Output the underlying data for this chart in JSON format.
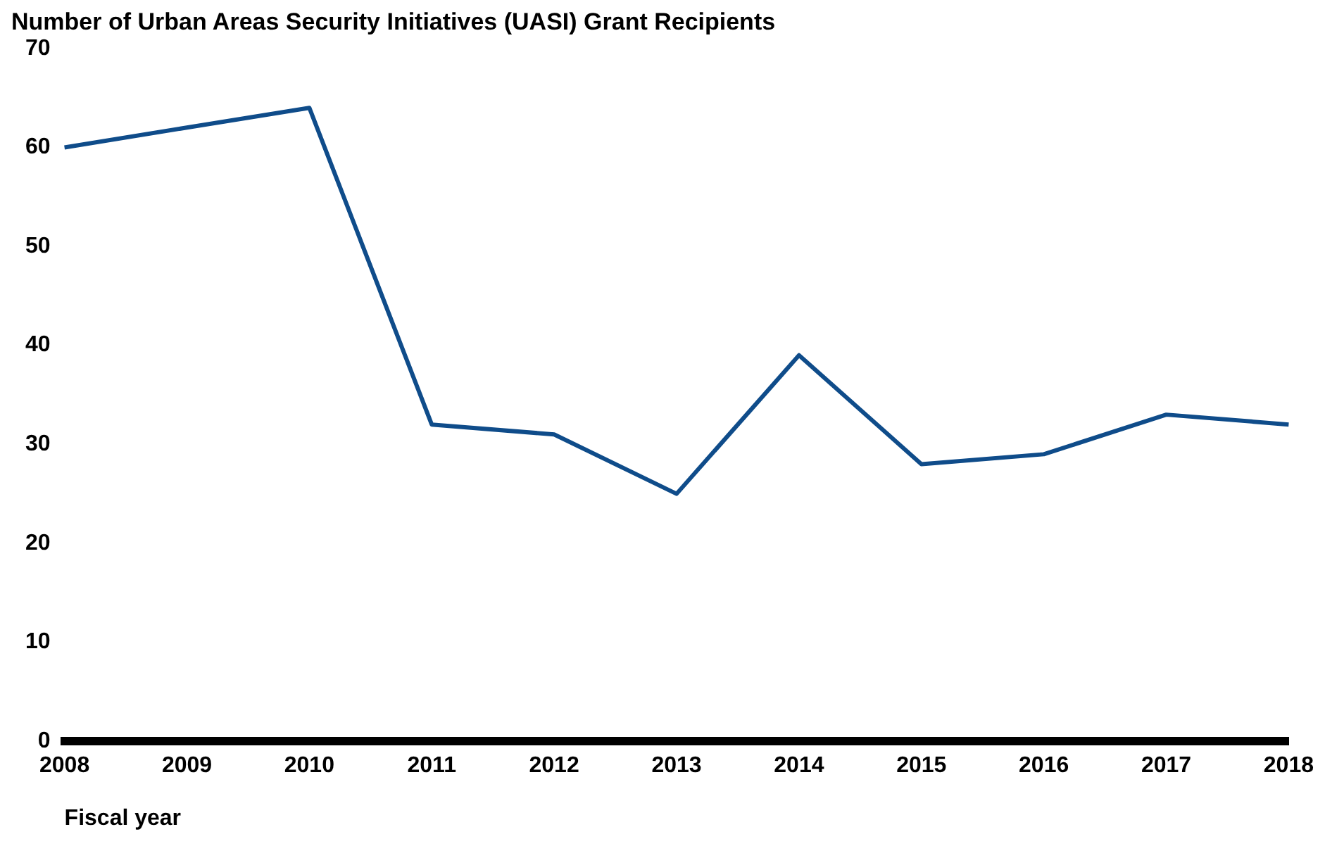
{
  "chart_data": {
    "type": "line",
    "title": "Number of Urban Areas Security Initiatives (UASI) Grant Recipients",
    "xlabel": "Fiscal year",
    "categories": [
      "2008",
      "2009",
      "2010",
      "2011",
      "2012",
      "2013",
      "2014",
      "2015",
      "2016",
      "2017",
      "2018"
    ],
    "series": [
      {
        "color": "#0f4c8a",
        "values": [
          60,
          62,
          64,
          32,
          31,
          25,
          39,
          28,
          29,
          33,
          32
        ]
      }
    ],
    "ylim": [
      0,
      70
    ],
    "yticks": [
      0,
      10,
      20,
      30,
      40,
      50,
      60,
      70
    ],
    "grid": false,
    "legend": false,
    "marker": "none",
    "line_style": "solid"
  }
}
